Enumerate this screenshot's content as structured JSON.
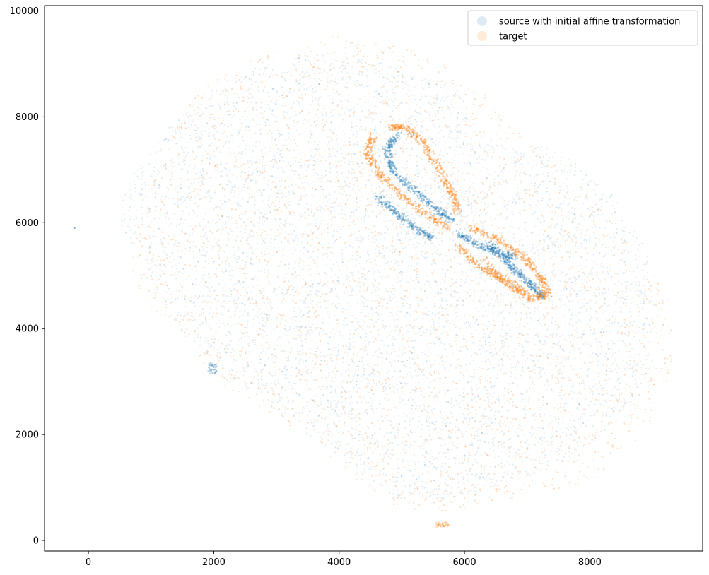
{
  "chart_data": {
    "type": "scatter",
    "title": "",
    "xlabel": "",
    "ylabel": "",
    "xlim": [
      -700,
      9800
    ],
    "ylim": [
      -200,
      10100
    ],
    "x_ticks": [
      0,
      2000,
      4000,
      6000,
      8000
    ],
    "y_ticks": [
      0,
      2000,
      4000,
      6000,
      8000,
      10000
    ],
    "x_tick_labels": [
      "0",
      "2000",
      "4000",
      "6000",
      "8000"
    ],
    "y_tick_labels": [
      "0",
      "2000",
      "4000",
      "6000",
      "8000",
      "10000"
    ],
    "grid": false,
    "legend_placement": "top-right",
    "series": [
      {
        "name": "source with initial affine transformation",
        "color": "#1f77b4",
        "alpha": 0.12,
        "outline": [
          [
            450,
            6100
          ],
          [
            700,
            6900
          ],
          [
            1200,
            7700
          ],
          [
            1800,
            8400
          ],
          [
            2600,
            8900
          ],
          [
            3600,
            9200
          ],
          [
            4600,
            9050
          ],
          [
            5400,
            8800
          ],
          [
            6000,
            8450
          ],
          [
            6100,
            7800
          ],
          [
            6700,
            7400
          ],
          [
            7300,
            7450
          ],
          [
            7800,
            7100
          ],
          [
            8400,
            6500
          ],
          [
            8900,
            5500
          ],
          [
            9050,
            4400
          ],
          [
            8900,
            3100
          ],
          [
            8400,
            2200
          ],
          [
            7600,
            1500
          ],
          [
            6700,
            1050
          ],
          [
            5800,
            780
          ],
          [
            5000,
            760
          ],
          [
            4400,
            1250
          ],
          [
            3600,
            1900
          ],
          [
            2800,
            2600
          ],
          [
            2100,
            3250
          ],
          [
            1500,
            3900
          ],
          [
            1100,
            4700
          ],
          [
            850,
            5400
          ],
          [
            560,
            5800
          ],
          [
            450,
            6100
          ]
        ],
        "extras": [
          [
            [
              1900,
              3350
            ],
            [
              2050,
              3300
            ],
            [
              2050,
              3150
            ],
            [
              1900,
              3150
            ]
          ]
        ],
        "arcs": [
          [
            [
              4950,
              7650
            ],
            [
              4750,
              7400
            ],
            [
              4850,
              7000
            ],
            [
              5200,
              6600
            ],
            [
              5550,
              6250
            ],
            [
              5800,
              6050
            ]
          ],
          [
            [
              6400,
              5600
            ],
            [
              6650,
              5300
            ],
            [
              6850,
              5050
            ],
            [
              7100,
              4800
            ],
            [
              7250,
              4600
            ]
          ],
          [
            [
              4600,
              6500
            ],
            [
              4900,
              6200
            ],
            [
              5200,
              5900
            ],
            [
              5500,
              5700
            ]
          ],
          [
            [
              5900,
              5800
            ],
            [
              6200,
              5600
            ],
            [
              6500,
              5450
            ],
            [
              6800,
              5350
            ]
          ]
        ]
      },
      {
        "name": "target",
        "color": "#ff7f0e",
        "alpha": 0.12,
        "outline": [
          [
            700,
            5700
          ],
          [
            1000,
            6600
          ],
          [
            1300,
            7600
          ],
          [
            1700,
            8500
          ],
          [
            2400,
            9000
          ],
          [
            3200,
            9350
          ],
          [
            4000,
            9550
          ],
          [
            4800,
            9400
          ],
          [
            5600,
            9050
          ],
          [
            6300,
            8500
          ],
          [
            6900,
            7700
          ],
          [
            7200,
            7450
          ],
          [
            7600,
            7100
          ],
          [
            8000,
            6500
          ],
          [
            8500,
            5800
          ],
          [
            9100,
            5000
          ],
          [
            9350,
            4200
          ],
          [
            9300,
            3200
          ],
          [
            8900,
            2100
          ],
          [
            8200,
            1200
          ],
          [
            7300,
            850
          ],
          [
            6500,
            700
          ],
          [
            5600,
            500
          ],
          [
            4900,
            650
          ],
          [
            4100,
            1300
          ],
          [
            3300,
            2100
          ],
          [
            2600,
            2600
          ],
          [
            2000,
            3050
          ],
          [
            1700,
            3600
          ],
          [
            1300,
            4100
          ],
          [
            900,
            4500
          ],
          [
            650,
            5100
          ],
          [
            700,
            5700
          ]
        ],
        "extras": [
          [
            [
              5550,
              350
            ],
            [
              5750,
              350
            ],
            [
              5750,
              250
            ],
            [
              5550,
              250
            ]
          ]
        ],
        "arcs": [
          [
            [
              4800,
              7800
            ],
            [
              5050,
              7800
            ],
            [
              5350,
              7500
            ],
            [
              5600,
              7000
            ],
            [
              5800,
              6550
            ],
            [
              5900,
              6200
            ]
          ],
          [
            [
              4550,
              7650
            ],
            [
              4450,
              7300
            ],
            [
              4650,
              6900
            ],
            [
              5000,
              6500
            ],
            [
              5400,
              6150
            ],
            [
              5750,
              5900
            ]
          ],
          [
            [
              6100,
              5900
            ],
            [
              6500,
              5700
            ],
            [
              6900,
              5400
            ],
            [
              7200,
              5000
            ],
            [
              7350,
              4650
            ],
            [
              7050,
              4550
            ],
            [
              6600,
              4900
            ],
            [
              6300,
              5300
            ]
          ],
          [
            [
              5900,
              5550
            ],
            [
              6200,
              5200
            ],
            [
              6600,
              4950
            ],
            [
              7000,
              4700
            ]
          ]
        ]
      }
    ]
  }
}
